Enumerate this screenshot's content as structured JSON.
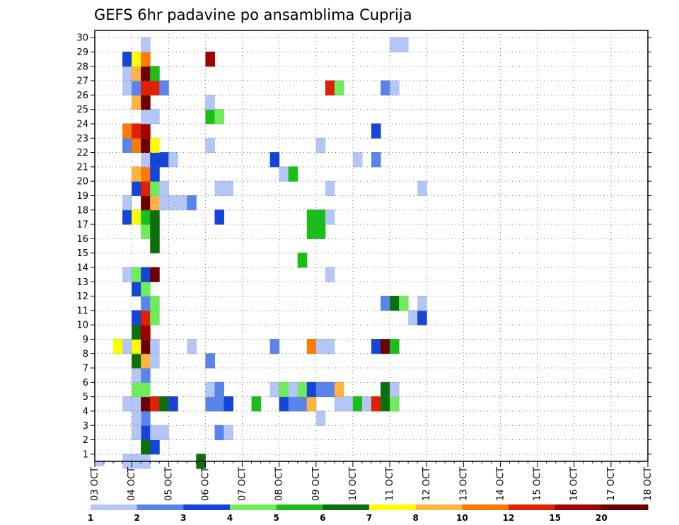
{
  "chart_data": {
    "type": "heatmap",
    "title": "GEFS 6hr padavine po ansamblima Cuprija",
    "xlabel": "",
    "ylabel": "",
    "y_ticks": [
      1,
      2,
      3,
      4,
      5,
      6,
      7,
      8,
      9,
      10,
      11,
      12,
      13,
      14,
      15,
      16,
      17,
      18,
      19,
      20,
      21,
      22,
      23,
      24,
      25,
      26,
      27,
      28,
      29,
      30
    ],
    "ylim": [
      0.5,
      30.5
    ],
    "x_ticks": [
      "03 OCT",
      "04 OCT",
      "05 OCT",
      "06 OCT",
      "07 OCT",
      "08 OCT",
      "09 OCT",
      "10 OCT",
      "11 OCT",
      "12 OCT",
      "13 OCT",
      "14 OCT",
      "15 OCT",
      "16 OCT",
      "17 OCT",
      "18 OCT"
    ],
    "x_unit": "6-hour steps from 03 OCT 00Z",
    "grid": true,
    "colorbar": {
      "colors": [
        "#b3c6f5",
        "#5b84ea",
        "#1545d6",
        "#6fec5a",
        "#19be19",
        "#0b700b",
        "#ffff00",
        "#ffb340",
        "#ff7a00",
        "#e02000",
        "#a00000",
        "#6a0000"
      ],
      "tick_labels": [
        "1",
        "2",
        "3",
        "4",
        "5",
        "6",
        "7",
        "8",
        "10",
        "12",
        "15",
        "20"
      ],
      "units": ""
    },
    "cells": [
      [
        0,
        -1,
        0
      ],
      [
        4,
        -1,
        2
      ],
      [
        5,
        -1,
        4
      ],
      [
        5,
        1,
        0
      ],
      [
        5,
        2,
        0
      ],
      [
        4,
        1,
        0
      ],
      [
        3,
        1,
        0
      ],
      [
        11,
        1,
        5
      ],
      [
        6,
        2,
        2
      ],
      [
        5,
        2,
        5
      ],
      [
        5,
        3,
        2
      ],
      [
        4,
        3,
        0
      ],
      [
        4,
        4,
        0
      ],
      [
        5,
        3,
        2
      ],
      [
        4,
        3,
        0
      ],
      [
        6,
        3,
        0
      ],
      [
        7,
        3,
        0
      ],
      [
        13,
        3,
        1
      ],
      [
        14,
        3,
        0
      ],
      [
        5,
        4,
        1
      ],
      [
        4,
        4,
        0
      ],
      [
        24,
        4,
        0
      ],
      [
        3,
        5,
        0
      ],
      [
        4,
        5,
        0
      ],
      [
        5,
        5,
        11
      ],
      [
        6,
        5,
        9
      ],
      [
        7,
        5,
        5
      ],
      [
        8,
        5,
        2
      ],
      [
        12,
        5,
        1
      ],
      [
        13,
        5,
        1
      ],
      [
        14,
        5,
        2
      ],
      [
        17,
        5,
        4
      ],
      [
        20,
        5,
        2
      ],
      [
        21,
        5,
        1
      ],
      [
        22,
        5,
        1
      ],
      [
        23,
        5,
        7
      ],
      [
        26,
        5,
        0
      ],
      [
        27,
        5,
        0
      ],
      [
        28,
        5,
        4
      ],
      [
        29,
        5,
        0
      ],
      [
        30,
        5,
        9
      ],
      [
        31,
        5,
        5
      ],
      [
        32,
        5,
        3
      ],
      [
        4,
        6,
        3
      ],
      [
        5,
        6,
        3
      ],
      [
        12,
        6,
        0
      ],
      [
        13,
        6,
        1
      ],
      [
        19,
        6,
        0
      ],
      [
        20,
        6,
        3
      ],
      [
        21,
        6,
        0
      ],
      [
        22,
        6,
        3
      ],
      [
        23,
        6,
        2
      ],
      [
        24,
        6,
        1
      ],
      [
        25,
        6,
        1
      ],
      [
        26,
        6,
        7
      ],
      [
        31,
        6,
        5
      ],
      [
        32,
        6,
        0
      ],
      [
        4,
        7,
        0
      ],
      [
        5,
        7,
        1
      ],
      [
        4,
        8,
        5
      ],
      [
        5,
        8,
        7
      ],
      [
        6,
        8,
        0
      ],
      [
        12,
        8,
        1
      ],
      [
        2,
        9,
        6
      ],
      [
        3,
        9,
        0
      ],
      [
        4,
        9,
        6
      ],
      [
        5,
        9,
        11
      ],
      [
        6,
        9,
        0
      ],
      [
        10,
        9,
        0
      ],
      [
        19,
        9,
        1
      ],
      [
        23,
        9,
        8
      ],
      [
        24,
        9,
        0
      ],
      [
        25,
        9,
        0
      ],
      [
        30,
        9,
        2
      ],
      [
        31,
        9,
        11
      ],
      [
        32,
        9,
        4
      ],
      [
        4,
        10,
        5
      ],
      [
        5,
        10,
        10
      ],
      [
        4,
        11,
        2
      ],
      [
        5,
        11,
        9
      ],
      [
        6,
        11,
        3
      ],
      [
        34,
        11,
        0
      ],
      [
        35,
        11,
        2
      ],
      [
        5,
        12,
        1
      ],
      [
        6,
        12,
        3
      ],
      [
        31,
        12,
        1
      ],
      [
        32,
        12,
        5
      ],
      [
        33,
        12,
        3
      ],
      [
        35,
        12,
        0
      ],
      [
        4,
        13,
        2
      ],
      [
        5,
        13,
        3
      ],
      [
        3,
        14,
        0
      ],
      [
        4,
        14,
        3
      ],
      [
        5,
        14,
        2
      ],
      [
        6,
        14,
        11
      ],
      [
        25,
        14,
        0
      ],
      [
        22,
        15,
        4
      ],
      [
        6,
        16,
        5
      ],
      [
        5,
        17,
        3
      ],
      [
        6,
        17,
        5
      ],
      [
        23,
        17,
        4
      ],
      [
        24,
        17,
        4
      ],
      [
        3,
        18,
        2
      ],
      [
        4,
        18,
        6
      ],
      [
        5,
        18,
        4
      ],
      [
        6,
        18,
        5
      ],
      [
        13,
        18,
        2
      ],
      [
        23,
        18,
        4
      ],
      [
        24,
        18,
        4
      ],
      [
        25,
        18,
        0
      ],
      [
        3,
        19,
        0
      ],
      [
        5,
        19,
        11
      ],
      [
        6,
        19,
        7
      ],
      [
        7,
        19,
        0
      ],
      [
        8,
        19,
        0
      ],
      [
        9,
        19,
        0
      ],
      [
        10,
        19,
        1
      ],
      [
        4,
        20,
        2
      ],
      [
        5,
        20,
        9
      ],
      [
        6,
        20,
        3
      ],
      [
        7,
        20,
        0
      ],
      [
        13,
        20,
        0
      ],
      [
        14,
        20,
        0
      ],
      [
        25,
        20,
        0
      ],
      [
        35,
        20,
        0
      ],
      [
        4,
        21,
        7
      ],
      [
        5,
        21,
        8
      ],
      [
        6,
        21,
        2
      ],
      [
        20,
        21,
        0
      ],
      [
        21,
        21,
        4
      ],
      [
        5,
        22,
        0
      ],
      [
        6,
        22,
        2
      ],
      [
        7,
        22,
        2
      ],
      [
        8,
        22,
        0
      ],
      [
        19,
        22,
        2
      ],
      [
        28,
        22,
        0
      ],
      [
        30,
        22,
        1
      ],
      [
        3,
        23,
        1
      ],
      [
        4,
        23,
        8
      ],
      [
        5,
        23,
        11
      ],
      [
        6,
        23,
        6
      ],
      [
        12,
        23,
        0
      ],
      [
        24,
        23,
        0
      ],
      [
        3,
        24,
        8
      ],
      [
        4,
        24,
        9
      ],
      [
        5,
        24,
        10
      ],
      [
        30,
        24,
        2
      ],
      [
        5,
        25,
        0
      ],
      [
        6,
        25,
        0
      ],
      [
        12,
        25,
        4
      ],
      [
        13,
        25,
        3
      ],
      [
        4,
        26,
        7
      ],
      [
        5,
        26,
        11
      ],
      [
        12,
        26,
        0
      ],
      [
        3,
        27,
        0
      ],
      [
        4,
        27,
        1
      ],
      [
        5,
        27,
        9
      ],
      [
        6,
        27,
        9
      ],
      [
        7,
        27,
        1
      ],
      [
        25,
        27,
        9
      ],
      [
        26,
        27,
        3
      ],
      [
        31,
        27,
        1
      ],
      [
        32,
        27,
        0
      ],
      [
        3,
        28,
        0
      ],
      [
        4,
        28,
        7
      ],
      [
        5,
        28,
        11
      ],
      [
        6,
        28,
        4
      ],
      [
        3,
        29,
        2
      ],
      [
        4,
        29,
        6
      ],
      [
        5,
        29,
        8
      ],
      [
        12,
        29,
        10
      ],
      [
        5,
        30,
        0
      ],
      [
        32,
        30,
        0
      ],
      [
        33,
        30,
        0
      ]
    ]
  }
}
